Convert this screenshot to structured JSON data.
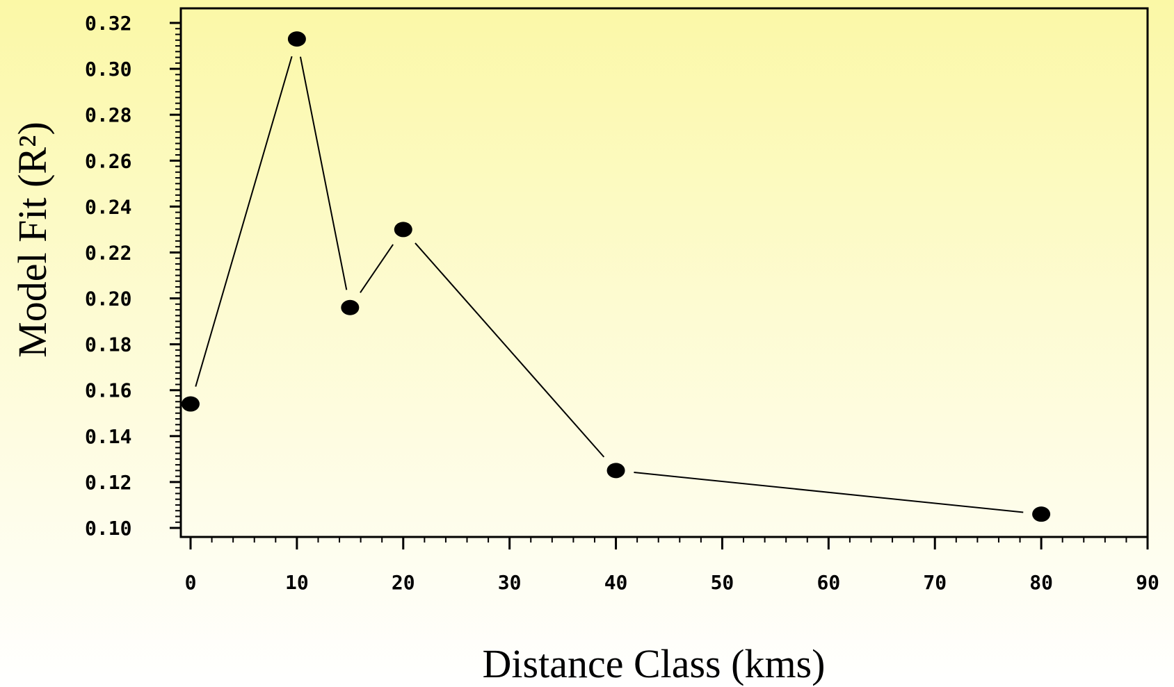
{
  "chart_data": {
    "type": "line",
    "xlabel": "Distance Class (kms)",
    "ylabel": "Model Fit (R²)",
    "xlim": [
      0,
      90
    ],
    "ylim": [
      0.1,
      0.32
    ],
    "xticks": [
      0,
      10,
      20,
      30,
      40,
      50,
      60,
      70,
      80,
      90
    ],
    "yticks": [
      0.1,
      0.12,
      0.14,
      0.16,
      0.18,
      0.2,
      0.22,
      0.24,
      0.26,
      0.28,
      0.3,
      0.32
    ],
    "x_tick_labels": [
      "0",
      "10",
      "20",
      "30",
      "40",
      "50",
      "60",
      "70",
      "80",
      "90"
    ],
    "y_tick_labels": [
      "0.10",
      "0.12",
      "0.14",
      "0.16",
      "0.18",
      "0.20",
      "0.22",
      "0.24",
      "0.26",
      "0.28",
      "0.30",
      "0.32"
    ],
    "grid": false,
    "series": [
      {
        "x": [
          0,
          10,
          15,
          20,
          40,
          80
        ],
        "y": [
          0.154,
          0.313,
          0.196,
          0.23,
          0.125,
          0.106
        ]
      }
    ],
    "colors": {
      "line": "#000000",
      "marker": "#000000",
      "frame": "#000000"
    }
  }
}
